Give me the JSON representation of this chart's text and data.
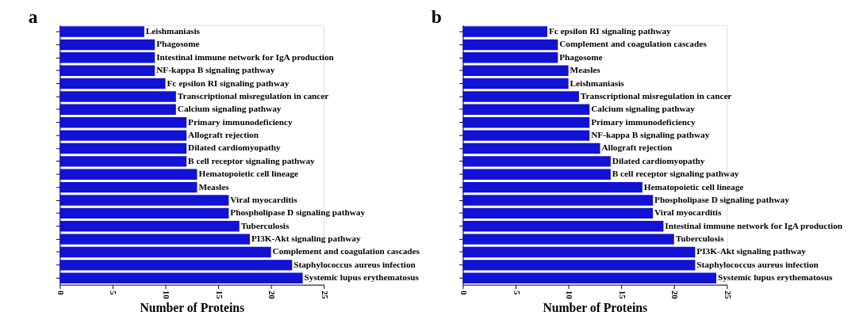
{
  "chart_data": [
    {
      "type": "bar",
      "title": "a",
      "orientation": "horizontal",
      "xlabel": "Number of Proteins",
      "xlim": [
        0,
        25
      ],
      "xticks": [
        0,
        5,
        10,
        15,
        20,
        25
      ],
      "tick_labels": "x",
      "grid": false,
      "categories": [
        "Leishmaniasis",
        "Phagosome",
        "Intestinal immune network for IgA production",
        "NF-kappa B signaling pathway",
        "Fc epsilon RI signaling pathway",
        "Transcriptional misregulation in cancer",
        "Calcium signaling pathway",
        "Primary immunodeficiency",
        "Allograft rejection",
        "Dilated cardiomyopathy",
        "B cell receptor signaling pathway",
        "Hematopoietic cell lineage",
        "Measles",
        "Viral myocarditis",
        "Phospholipase D signaling pathway",
        "Tuberculosis",
        "PI3K-Akt signaling pathway",
        "Complement and coagulation cascades",
        "Staphylococcus aureus infection",
        "Systemic lupus erythematosus"
      ],
      "series": [
        {
          "color": "#1212d4",
          "values": [
            8,
            9,
            9,
            9,
            10,
            11,
            11,
            12,
            12,
            12,
            12,
            13,
            13,
            16,
            16,
            17,
            18,
            20,
            22,
            23
          ]
        }
      ]
    },
    {
      "type": "bar",
      "title": "b",
      "orientation": "horizontal",
      "xlabel": "Number of Proteins",
      "xlim": [
        0,
        25
      ],
      "xticks": [
        0,
        5,
        10,
        15,
        20,
        25
      ],
      "tick_labels": "x",
      "grid": false,
      "categories": [
        "Fc epsilon RI signaling pathway",
        "Complement and coagulation cascades",
        "Phagosome",
        "Measles",
        "Leishmaniasis",
        "Transcriptional misregulation in cancer",
        "Calcium signaling pathway",
        "Primary immunodeficiency",
        "NF-kappa B signaling pathway",
        "Allograft rejection",
        "Dilated cardiomyopathy",
        "B cell receptor signaling pathway",
        "Hematopoietic cell lineage",
        "Phospholipase D signaling pathway",
        "Viral myocarditis",
        "Intestinal immune network for IgA production",
        "Tuberculosis",
        "PI3K-Akt signaling pathway",
        "Staphylococcus aureus infection",
        "Systemic lupus erythematosus"
      ],
      "series": [
        {
          "color": "#1212d4",
          "values": [
            8,
            9,
            9,
            10,
            10,
            11,
            12,
            12,
            12,
            13,
            14,
            14,
            17,
            18,
            18,
            19,
            20,
            22,
            22,
            24
          ]
        }
      ]
    }
  ]
}
